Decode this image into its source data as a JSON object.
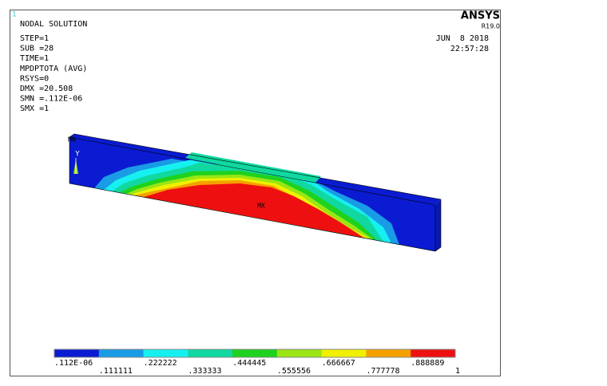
{
  "viewport": {
    "number": "1"
  },
  "brand": {
    "name": "ANSYS",
    "version": "R19.0"
  },
  "info": [
    "NODAL SOLUTION",
    "STEP=1",
    "SUB =28",
    "TIME=1",
    "MPDPTOTA (AVG)",
    "RSYS=0",
    "DMX =20.508",
    "SMN =.112E-06",
    "SMX =1"
  ],
  "timestamp": {
    "date": "JUN  8 2018",
    "time": "22:57:28"
  },
  "model": {
    "max_label": "MX",
    "min_label": "MN",
    "axis_label": "Y"
  },
  "legend": {
    "colors": [
      "#0a1bd1",
      "#1a9be6",
      "#16f0f0",
      "#10d8a0",
      "#1ed21e",
      "#9ae614",
      "#f0f000",
      "#f5a000",
      "#ee1010"
    ],
    "labels": [
      ".112E-06",
      ".111111",
      ".222222",
      ".333333",
      ".444445",
      ".555556",
      ".666667",
      ".777778",
      ".888889",
      "1"
    ]
  }
}
